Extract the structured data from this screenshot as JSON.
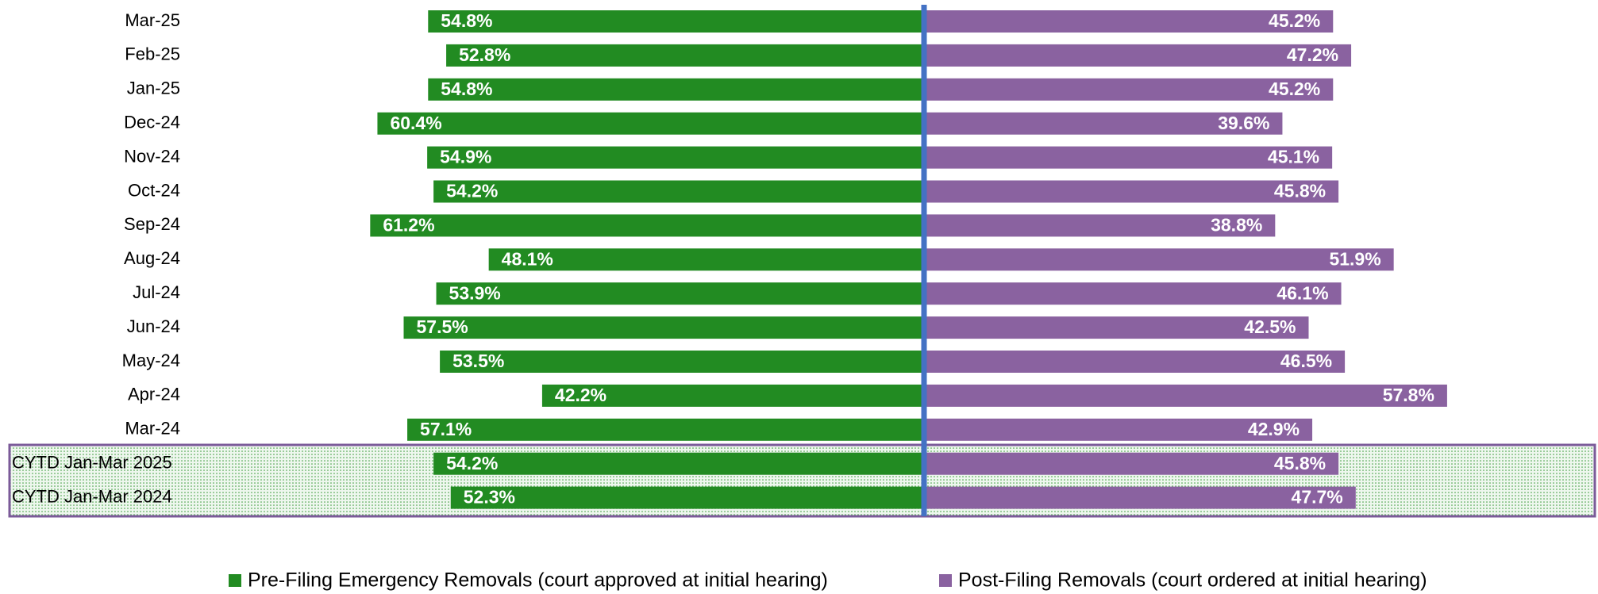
{
  "chart_data": {
    "type": "diverging-bar",
    "categories": [
      "Mar-25",
      "Feb-25",
      "Jan-25",
      "Dec-24",
      "Nov-24",
      "Oct-24",
      "Sep-24",
      "Aug-24",
      "Jul-24",
      "Jun-24",
      "May-24",
      "Apr-24",
      "Mar-24",
      "CYTD Jan-Mar 2025",
      "CYTD Jan-Mar 2024"
    ],
    "series": [
      {
        "name": "Pre-Filing Emergency Removals (court approved at initial hearing)",
        "color": "#228b22",
        "values": [
          54.8,
          52.8,
          54.8,
          60.4,
          54.9,
          54.2,
          61.2,
          48.1,
          53.9,
          57.5,
          53.5,
          42.2,
          57.1,
          54.2,
          52.3
        ],
        "value_labels": [
          "54.8%",
          "52.8%",
          "54.8%",
          "60.4%",
          "54.9%",
          "54.2%",
          "61.2%",
          "48.1%",
          "53.9%",
          "57.5%",
          "53.5%",
          "42.2%",
          "57.1%",
          "54.2%",
          "52.3%"
        ]
      },
      {
        "name": "Post-Filing Removals (court ordered at initial hearing)",
        "color": "#8a62a0",
        "values": [
          45.2,
          47.2,
          45.2,
          39.6,
          45.1,
          45.8,
          38.8,
          51.9,
          46.1,
          42.5,
          46.5,
          57.8,
          42.9,
          45.8,
          47.7
        ],
        "value_labels": [
          "45.2%",
          "47.2%",
          "45.2%",
          "39.6%",
          "45.1%",
          "45.8%",
          "38.8%",
          "51.9%",
          "46.1%",
          "42.5%",
          "46.5%",
          "57.8%",
          "42.9%",
          "45.8%",
          "47.7%"
        ]
      }
    ]
  }
}
